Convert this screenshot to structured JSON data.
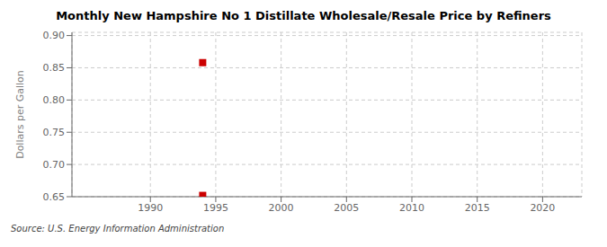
{
  "chart_data": {
    "type": "scatter",
    "title": "Monthly New Hampshire No 1 Distillate Wholesale/Resale Price by Refiners",
    "ylabel": "Dollars per Gallon",
    "annotations": [
      "Source: U.S. Energy Information Administration"
    ],
    "x": [
      1994.0,
      1994.0
    ],
    "values": [
      0.858,
      0.652
    ],
    "color": "#cc0000",
    "marker": "square",
    "xlim": [
      1984,
      2023
    ],
    "ylim": [
      0.65,
      0.905
    ],
    "xticks": [
      1990,
      1995,
      2000,
      2005,
      2010,
      2015,
      2020
    ],
    "yticks": [
      0.65,
      {
        "value": 0.7,
        "label": "0.70"
      },
      0.75,
      {
        "value": 0.8,
        "label": "0.80"
      },
      0.85,
      {
        "value": 0.9,
        "label": "0.90"
      }
    ],
    "grid": true
  }
}
